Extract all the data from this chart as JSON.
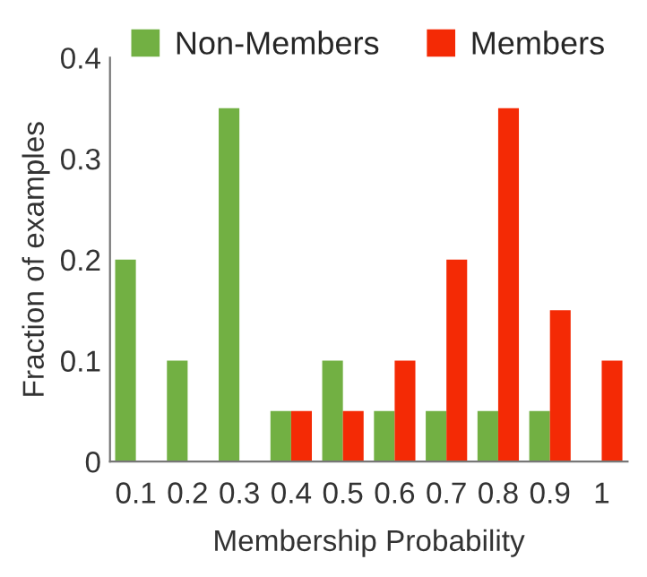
{
  "chart_data": {
    "type": "bar",
    "xlabel": "Membership Probability",
    "ylabel": "Fraction of examples",
    "categories": [
      "0.1",
      "0.2",
      "0.3",
      "0.4",
      "0.5",
      "0.6",
      "0.7",
      "0.8",
      "0.9",
      "1"
    ],
    "series": [
      {
        "name": "Non-Members",
        "color": "#72b043",
        "values": [
          0.2,
          0.1,
          0.35,
          0.05,
          0.1,
          0.05,
          0.05,
          0.05,
          0.05,
          0
        ]
      },
      {
        "name": "Members",
        "color": "#f42a05",
        "values": [
          0,
          0,
          0,
          0.05,
          0.05,
          0.1,
          0.2,
          0.35,
          0.15,
          0.1
        ]
      }
    ],
    "ylim": [
      0,
      0.4
    ],
    "yticks": [
      {
        "value": 0,
        "label": "0"
      },
      0.1,
      0.2,
      0.3,
      0.4
    ],
    "grid": false,
    "legend": "top"
  }
}
